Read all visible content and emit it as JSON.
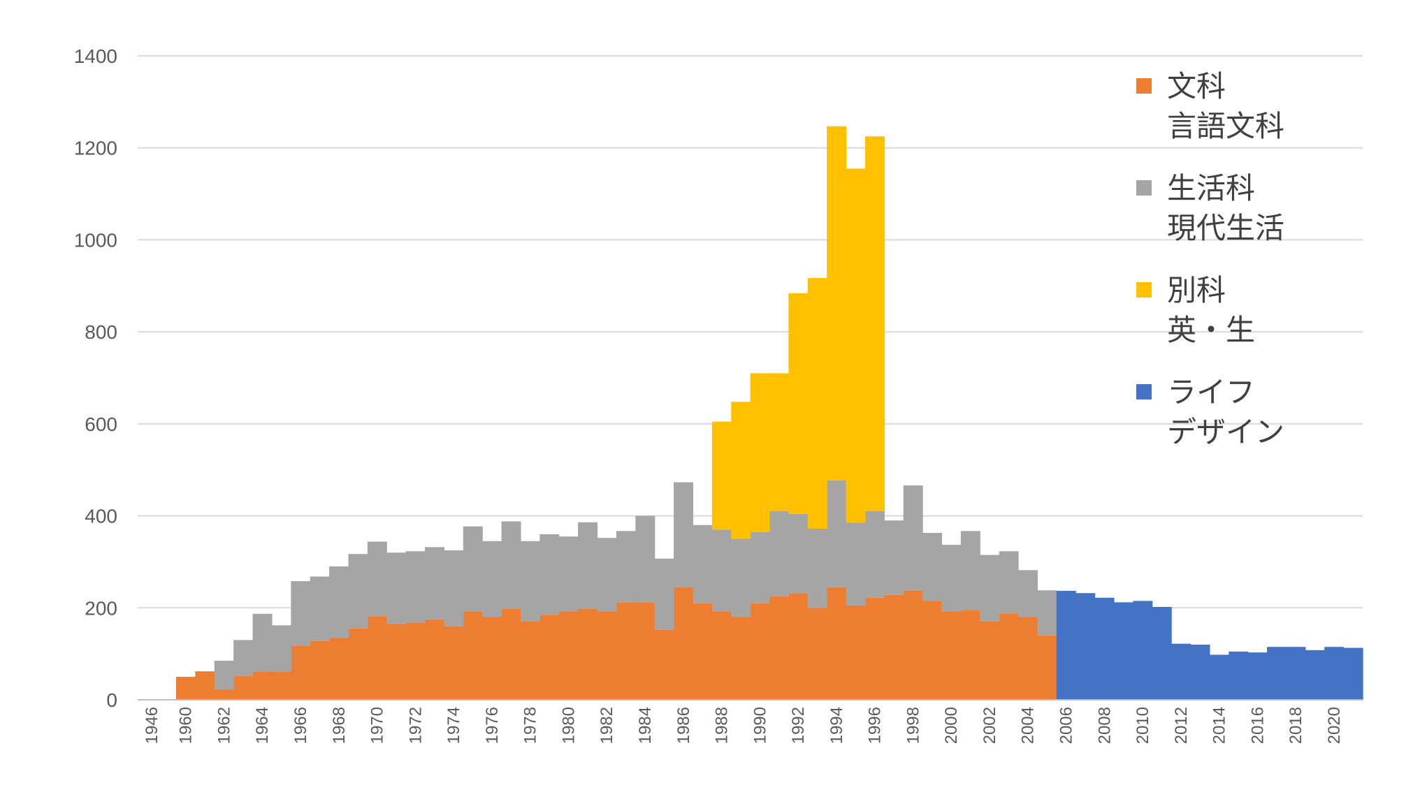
{
  "chart_data": {
    "type": "bar",
    "stacked": true,
    "grid": true,
    "legend_position": "right",
    "ylim": [
      0,
      1400
    ],
    "yticks": [
      0,
      200,
      400,
      600,
      800,
      1000,
      1200,
      1400
    ],
    "x_range": [
      1946,
      2021
    ],
    "xticks": [
      1946,
      1960,
      1962,
      1964,
      1966,
      1968,
      1970,
      1972,
      1974,
      1976,
      1978,
      1980,
      1982,
      1984,
      1986,
      1988,
      1990,
      1992,
      1994,
      1996,
      1998,
      2000,
      2002,
      2004,
      2006,
      2008,
      2010,
      2012,
      2014,
      2016,
      2018,
      2020
    ],
    "title": "",
    "xlabel": "",
    "ylabel": "",
    "series": [
      {
        "name": "文科\n言語文科",
        "legend_lines": [
          "文科",
          "言語文科"
        ],
        "color": "#ED7D31",
        "x": [
          1960,
          1961,
          1962,
          1963,
          1964,
          1965,
          1966,
          1967,
          1968,
          1969,
          1970,
          1971,
          1972,
          1973,
          1974,
          1975,
          1976,
          1977,
          1978,
          1979,
          1980,
          1981,
          1982,
          1983,
          1984,
          1985,
          1986,
          1987,
          1988,
          1989,
          1990,
          1991,
          1992,
          1993,
          1994,
          1995,
          1996,
          1997,
          1998,
          1999,
          2000,
          2001,
          2002,
          2003,
          2004,
          2005
        ],
        "values": [
          50,
          62,
          22,
          52,
          62,
          62,
          118,
          128,
          135,
          155,
          182,
          165,
          168,
          175,
          160,
          192,
          180,
          198,
          170,
          185,
          192,
          198,
          192,
          212,
          212,
          152,
          245,
          210,
          192,
          180,
          210,
          225,
          232,
          200,
          245,
          205,
          222,
          228,
          238,
          215,
          192,
          195,
          170,
          188,
          180,
          140
        ]
      },
      {
        "name": "生活科\n現代生活",
        "legend_lines": [
          "生活科",
          "現代生活"
        ],
        "color": "#A5A5A5",
        "x": [
          1962,
          1963,
          1964,
          1965,
          1966,
          1967,
          1968,
          1969,
          1970,
          1971,
          1972,
          1973,
          1974,
          1975,
          1976,
          1977,
          1978,
          1979,
          1980,
          1981,
          1982,
          1983,
          1984,
          1985,
          1986,
          1987,
          1988,
          1989,
          1990,
          1991,
          1992,
          1993,
          1994,
          1995,
          1996,
          1997,
          1998,
          1999,
          2000,
          2001,
          2002,
          2003,
          2004,
          2005
        ],
        "values": [
          63,
          78,
          125,
          100,
          140,
          140,
          155,
          162,
          162,
          155,
          155,
          157,
          165,
          185,
          165,
          190,
          175,
          175,
          163,
          188,
          160,
          155,
          188,
          155,
          228,
          170,
          178,
          170,
          155,
          185,
          172,
          172,
          232,
          180,
          188,
          162,
          228,
          148,
          145,
          172,
          145,
          135,
          102,
          98
        ]
      },
      {
        "name": "別科\n英・生",
        "legend_lines": [
          "別科",
          "英・生"
        ],
        "color": "#FFC000",
        "x": [
          1988,
          1989,
          1990,
          1991,
          1992,
          1993,
          1994,
          1995,
          1996
        ],
        "values": [
          235,
          298,
          345,
          300,
          480,
          545,
          770,
          770,
          815
        ]
      },
      {
        "name": "ライフ\nデザイン",
        "legend_lines": [
          "ライフ",
          "デザイン"
        ],
        "color": "#4472C4",
        "x": [
          2006,
          2007,
          2008,
          2009,
          2010,
          2011,
          2012,
          2013,
          2014,
          2015,
          2016,
          2017,
          2018,
          2019,
          2020,
          2021
        ],
        "values": [
          237,
          232,
          222,
          212,
          215,
          202,
          122,
          120,
          98,
          105,
          103,
          115,
          115,
          108,
          115,
          113
        ]
      }
    ]
  }
}
